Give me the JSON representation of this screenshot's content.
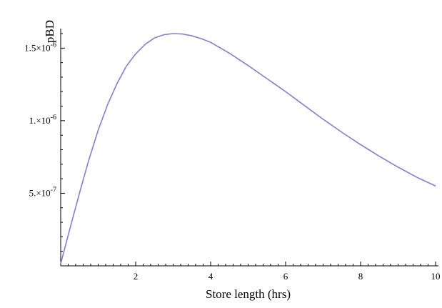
{
  "chart_data": {
    "type": "line",
    "title": "",
    "xlabel": "Store length (hrs)",
    "ylabel": "pBD",
    "xlim": [
      0,
      10
    ],
    "ylim": [
      0,
      1.6e-06
    ],
    "grid": false,
    "x_ticks": [
      {
        "value": 2,
        "label": "2"
      },
      {
        "value": 4,
        "label": "4"
      },
      {
        "value": 6,
        "label": "6"
      },
      {
        "value": 8,
        "label": "8"
      },
      {
        "value": 10,
        "label": "10"
      }
    ],
    "y_ticks": [
      {
        "value": 5e-07,
        "mantissa": "5.",
        "exp": "-7"
      },
      {
        "value": 1e-06,
        "mantissa": "1.",
        "exp": "-6"
      },
      {
        "value": 1.5e-06,
        "mantissa": "1.5",
        "exp": "-6"
      }
    ],
    "series": [
      {
        "color": "#8080cc",
        "x": [
          0,
          0.25,
          0.5,
          0.75,
          1,
          1.25,
          1.5,
          1.75,
          2,
          2.25,
          2.5,
          2.75,
          3,
          3.25,
          3.5,
          3.75,
          4,
          4.5,
          5,
          5.5,
          6,
          6.5,
          7,
          7.5,
          8,
          8.5,
          9,
          9.5,
          10
        ],
        "values": [
          1.5e-08,
          2.6e-07,
          5e-07,
          7.3e-07,
          9.35e-07,
          1.11e-06,
          1.255e-06,
          1.375e-06,
          1.46e-06,
          1.525e-06,
          1.57e-06,
          1.592e-06,
          1.6e-06,
          1.597e-06,
          1.585e-06,
          1.565e-06,
          1.54e-06,
          1.465e-06,
          1.38e-06,
          1.29e-06,
          1.2e-06,
          1.105e-06,
          1.01e-06,
          9.2e-07,
          8.35e-07,
          7.55e-07,
          6.8e-07,
          6.1e-07,
          5.5e-07
        ]
      }
    ]
  }
}
